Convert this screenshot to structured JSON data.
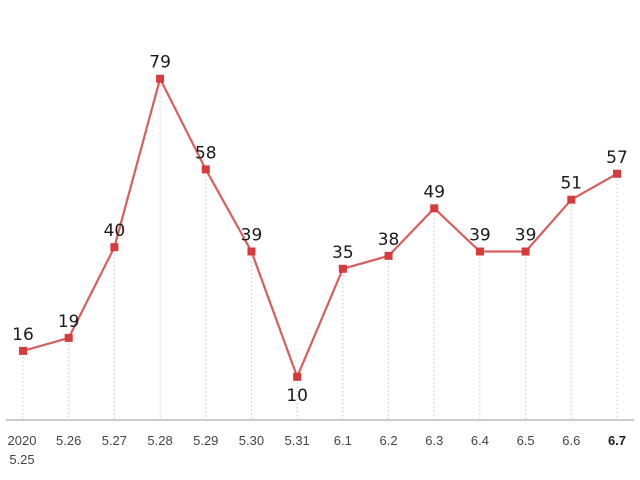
{
  "chart_data": {
    "type": "line",
    "categories": [
      "5.25",
      "5.26",
      "5.27",
      "5.28",
      "5.29",
      "5.30",
      "5.31",
      "6.1",
      "6.2",
      "6.3",
      "6.4",
      "6.5",
      "6.6",
      "6.7"
    ],
    "first_category_year": "2020",
    "values": [
      16,
      19,
      40,
      79,
      58,
      39,
      10,
      35,
      38,
      49,
      39,
      39,
      51,
      57
    ],
    "title": "",
    "xlabel": "",
    "ylabel": "",
    "ylim": [
      0,
      80
    ],
    "grid": "vertical dotted guides",
    "legend": "none",
    "highlight_last_category": true
  },
  "colors": {
    "line": "#d95f5f",
    "marker": "#d63a3a",
    "guide": "#c8c8c8",
    "axis": "#9a9a9a",
    "text": "#1a1a1a"
  }
}
